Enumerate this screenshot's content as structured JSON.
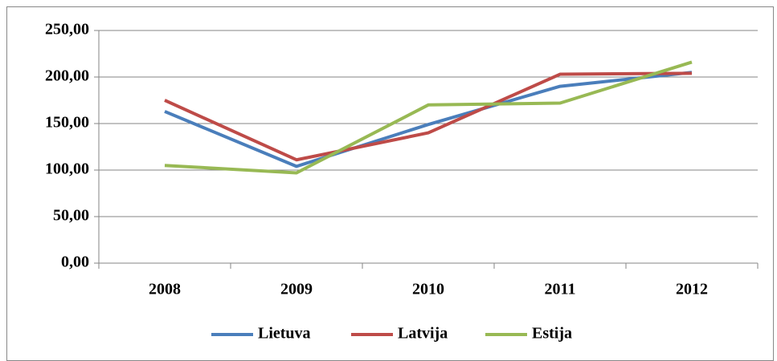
{
  "chart_data": {
    "type": "line",
    "categories": [
      "2008",
      "2009",
      "2010",
      "2011",
      "2012"
    ],
    "series": [
      {
        "name": "Lietuva",
        "color": "#4a7ebb",
        "values": [
          163,
          104,
          149,
          190,
          205
        ]
      },
      {
        "name": "Latvija",
        "color": "#be4b48",
        "values": [
          175,
          111,
          140,
          203,
          204
        ]
      },
      {
        "name": "Estija",
        "color": "#98b954",
        "values": [
          105,
          97,
          170,
          172,
          216
        ]
      }
    ],
    "ylim": [
      0,
      250
    ],
    "yticks": [
      {
        "value": 0,
        "label": "0,00"
      },
      {
        "value": 50,
        "label": "50,00"
      },
      {
        "value": 100,
        "label": "100,00"
      },
      {
        "value": 150,
        "label": "150,00"
      },
      {
        "value": 200,
        "label": "200,00"
      },
      {
        "value": 250,
        "label": "250,00"
      }
    ],
    "grid": true,
    "legend": "bottom"
  }
}
